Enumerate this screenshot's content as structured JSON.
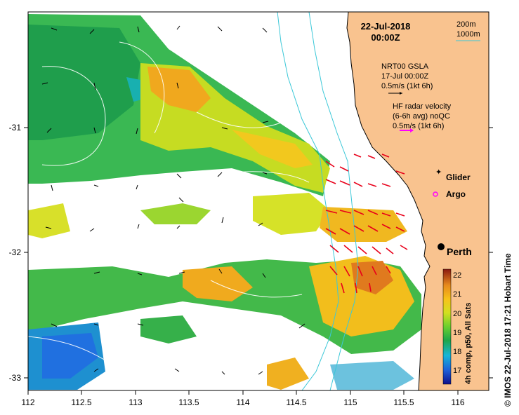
{
  "map": {
    "date": "22-Jul-2018",
    "time": "00:00Z",
    "depth_contours": [
      "200m",
      "1000m"
    ],
    "gsla": {
      "line1": "NRT00 GSLA",
      "line2": "17-Jul 00:00Z",
      "scale": "0.5m/s (1kt 6h)"
    },
    "radar": {
      "line1": "HF radar velocity",
      "line2": "(6-6h avg) noQC",
      "scale": "0.5m/s (1kt 6h)"
    },
    "markers": {
      "glider": "Glider",
      "argo": "Argo"
    },
    "city": "Perth",
    "colorbar": {
      "label": "4h comp, p50, All Sats",
      "ticks": [
        "22",
        "21",
        "20",
        "19",
        "18",
        "17"
      ],
      "range": [
        16.3,
        22.3
      ]
    },
    "credit": "©  IMOS 22-Jul-2018 17:21 Hobart Time",
    "x_ticks": [
      "112",
      "112.5",
      "113",
      "113.5",
      "114",
      "114.5",
      "115",
      "115.5",
      "116"
    ],
    "y_ticks": [
      "-31",
      "-32",
      "-33"
    ],
    "colors": {
      "land": "#f9c38f",
      "coast": "#000000",
      "contour": "#3cc8d8",
      "radar_arrow": "#e8001a",
      "gsla_arrow": "#000000",
      "glider": "#ff00ff",
      "argo": "#ff00ff"
    }
  }
}
